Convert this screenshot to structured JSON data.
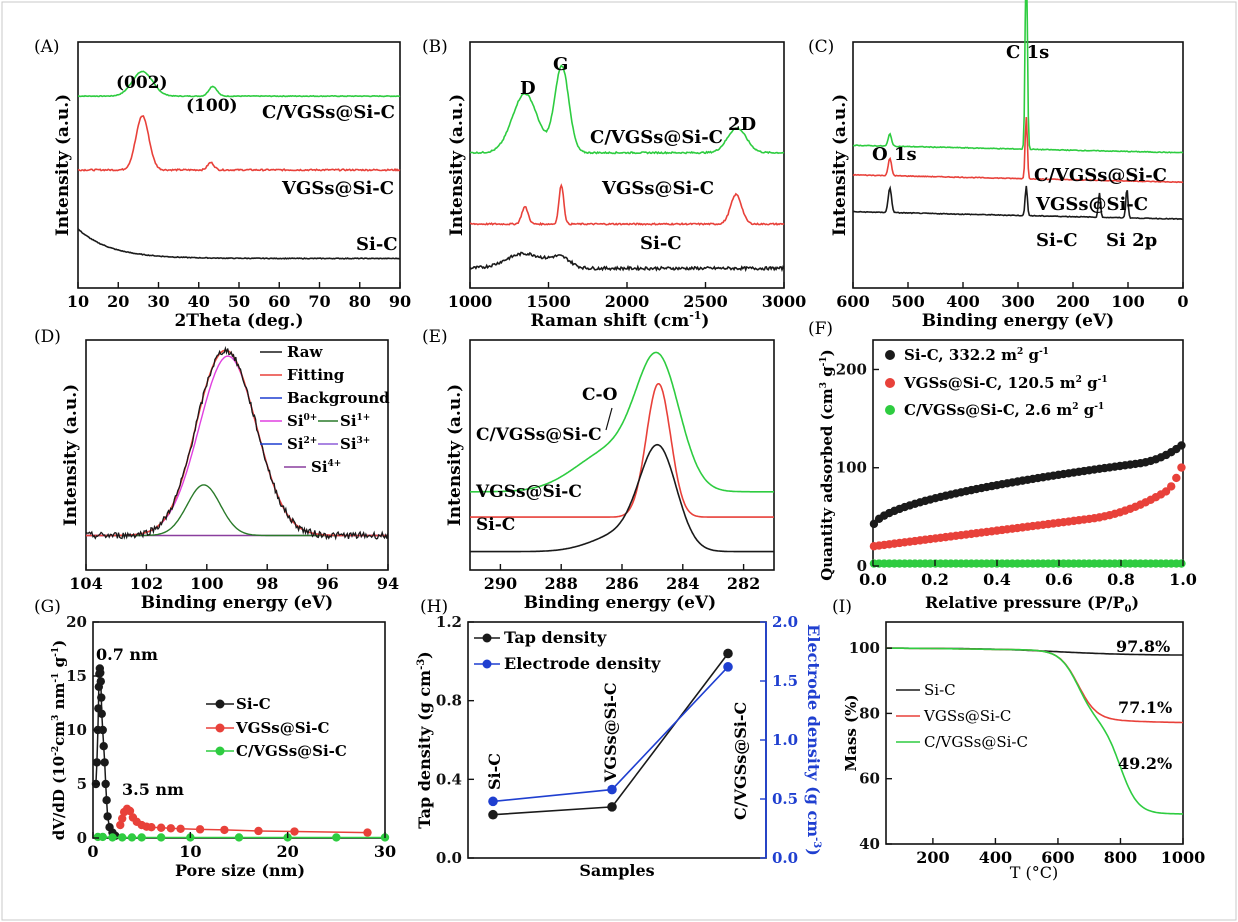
{
  "figure": {
    "border_color": "#c8c8c8"
  },
  "colors": {
    "black": "#1a1a1a",
    "red": "#e8413a",
    "green": "#2ecc40",
    "blue": "#1f3fd0",
    "magenta": "#e040e0",
    "dkgreen": "#2a7a2a",
    "purple": "#8a3f9e",
    "violet": "#8e5fd8"
  },
  "chart_data": [
    {
      "id": "A",
      "type": "line",
      "panel_label": "(A)",
      "xlabel": "2Theta (deg.)",
      "ylabel": "Intensity (a.u.)",
      "xlim": [
        10,
        90
      ],
      "xticks": [
        "10",
        "20",
        "30",
        "40",
        "50",
        "60",
        "70",
        "80",
        "90"
      ],
      "annotations": [
        "(002)",
        "(100)"
      ],
      "series": [
        {
          "name": "C/VGSs@Si-C",
          "color": "green",
          "baseline": 0.78,
          "peaks": [
            [
              26,
              0.1,
              2.5
            ],
            [
              43.5,
              0.04,
              1.0
            ]
          ],
          "noise": 0.003
        },
        {
          "name": "VGSs@Si-C",
          "color": "red",
          "baseline": 0.48,
          "peaks": [
            [
              26,
              0.22,
              1.6
            ],
            [
              43,
              0.03,
              0.8
            ]
          ],
          "noise": 0.006
        },
        {
          "name": "Si-C",
          "color": "black",
          "baseline": 0.12,
          "decay": 0.12,
          "noise": 0.003
        }
      ],
      "series_labels": [
        "C/VGSs@Si-C",
        "VGSs@Si-C",
        "Si-C"
      ]
    },
    {
      "id": "B",
      "type": "line",
      "panel_label": "(B)",
      "xlabel": "Raman shift (cm",
      "xlabel_sup": "-1",
      "xlabel_end": ")",
      "ylabel": "Intensity (a.u.)",
      "xlim": [
        1000,
        3000
      ],
      "xticks": [
        "1000",
        "1500",
        "2000",
        "2500",
        "3000"
      ],
      "annotations": [
        "D",
        "G",
        "2D"
      ],
      "series": [
        {
          "name": "C/VGSs@Si-C",
          "color": "green",
          "baseline": 0.55,
          "peaks": [
            [
              1350,
              0.24,
              80
            ],
            [
              1585,
              0.35,
              45
            ],
            [
              2700,
              0.1,
              60
            ]
          ],
          "noise": 0.006
        },
        {
          "name": "VGSs@Si-C",
          "color": "red",
          "baseline": 0.26,
          "peaks": [
            [
              1350,
              0.07,
              20
            ],
            [
              1582,
              0.16,
              15
            ],
            [
              2695,
              0.12,
              35
            ]
          ],
          "noise": 0.006
        },
        {
          "name": "Si-C",
          "color": "black",
          "baseline": 0.08,
          "peaks": [
            [
              1350,
              0.06,
              120
            ],
            [
              1580,
              0.04,
              60
            ]
          ],
          "noise": 0.012
        }
      ],
      "series_labels": [
        "C/VGSs@Si-C",
        "VGSs@Si-C",
        "Si-C"
      ]
    },
    {
      "id": "C",
      "type": "line",
      "panel_label": "(C)",
      "xlabel": "Binding energy (eV)",
      "ylabel": "Intensity (a.u.)",
      "xlim": [
        600,
        0
      ],
      "xticks": [
        "600",
        "500",
        "400",
        "300",
        "200",
        "100",
        "0"
      ],
      "annotations": [
        "C 1s",
        "O 1s",
        "Si 2p"
      ],
      "series": [
        {
          "name": "C/VGSs@Si-C",
          "color": "green",
          "baseline": 0.55,
          "peaks": [
            [
              533,
              0.05,
              3
            ],
            [
              285,
              0.8,
              2
            ]
          ],
          "noise": 0.003
        },
        {
          "name": "VGSs@Si-C",
          "color": "red",
          "baseline": 0.43,
          "peaks": [
            [
              533,
              0.07,
              3
            ],
            [
              285,
              0.25,
              2
            ]
          ],
          "noise": 0.003
        },
        {
          "name": "Si-C",
          "color": "black",
          "baseline": 0.28,
          "peaks": [
            [
              533,
              0.1,
              3
            ],
            [
              285,
              0.12,
              2
            ],
            [
              152,
              0.1,
              2
            ],
            [
              102,
              0.12,
              2
            ]
          ],
          "noise": 0.003
        }
      ],
      "series_labels": [
        "C/VGSs@Si-C",
        "VGSs@Si-C",
        "Si-C"
      ]
    },
    {
      "id": "D",
      "type": "line",
      "panel_label": "(D)",
      "xlabel": "Binding energy (eV)",
      "ylabel": "Intensity (a.u.)",
      "xlim": [
        104,
        94
      ],
      "xticks": [
        "104",
        "102",
        "100",
        "98",
        "96",
        "94"
      ],
      "legend": [
        "Raw",
        "Fitting",
        "Background",
        "Si0+",
        "Si1+",
        "Si2+",
        "Si3+",
        "Si4+"
      ],
      "legend_text": {
        "raw": "Raw",
        "fitting": "Fitting",
        "background": "Background",
        "si0": "Si",
        "si0_sup": "0+",
        "si1": "Si",
        "si1_sup": "1+",
        "si2": "Si",
        "si2_sup": "2+",
        "si3": "Si",
        "si3_sup": "3+",
        "si4": "Si",
        "si4_sup": "4+"
      },
      "components": [
        {
          "name": "Si0+",
          "center": 99.3,
          "amp": 0.78,
          "width": 0.95,
          "color": "magenta"
        },
        {
          "name": "Si1+",
          "center": 100.1,
          "amp": 0.22,
          "width": 0.55,
          "color": "dkgreen"
        }
      ]
    },
    {
      "id": "E",
      "type": "line",
      "panel_label": "(E)",
      "xlabel": "Binding energy (eV)",
      "ylabel": "Intensity (a.u.)",
      "xlim": [
        291,
        281
      ],
      "xticks": [
        "290",
        "288",
        "286",
        "284",
        "282"
      ],
      "annotations": [
        "C-O"
      ],
      "series": [
        {
          "name": "C/VGSs@Si-C",
          "color": "green",
          "baseline": 0.34,
          "peaks": [
            [
              284.8,
              0.52,
              0.7
            ],
            [
              286.3,
              0.18,
              1.2
            ]
          ]
        },
        {
          "name": "VGSs@Si-C",
          "color": "red",
          "baseline": 0.23,
          "peaks": [
            [
              284.8,
              0.58,
              0.4
            ]
          ]
        },
        {
          "name": "Si-C",
          "color": "black",
          "baseline": 0.08,
          "peaks": [
            [
              284.8,
              0.42,
              0.6
            ],
            [
              285.9,
              0.08,
              1.0
            ]
          ]
        }
      ],
      "series_labels": [
        "C/VGSs@Si-C",
        "VGSs@Si-C",
        "Si-C"
      ]
    },
    {
      "id": "F",
      "type": "scatter",
      "panel_label": "(F)",
      "xlabel": "Relative pressure (P/P",
      "xlabel_sub": "0",
      "xlabel_end": ")",
      "ylabel": "Quantity adsorbed (cm",
      "ylabel_sup1": "3",
      "ylabel_mid": " g",
      "ylabel_sup2": "-1",
      "ylabel_end": ")",
      "xlim": [
        0,
        1
      ],
      "ylim": [
        0,
        230
      ],
      "xticks": [
        "0.0",
        "0.2",
        "0.4",
        "0.6",
        "0.8",
        "1.0"
      ],
      "yticks": [
        "0",
        "100",
        "200"
      ],
      "legend": [
        {
          "text": "Si-C, 332.2 m",
          "sup": "2",
          "tail": " g",
          "sup2": "-1",
          "color": "black"
        },
        {
          "text": "VGSs@Si-C, 120.5 m",
          "sup": "2",
          "tail": " g",
          "sup2": "-1",
          "color": "red"
        },
        {
          "text": "C/VGSs@Si-C, 2.6 m",
          "sup": "2",
          "tail": " g",
          "sup2": "-1",
          "color": "green"
        }
      ],
      "series": [
        {
          "name": "Si-C",
          "color": "black",
          "kind": "sic"
        },
        {
          "name": "VGSs@Si-C",
          "color": "red",
          "kind": "vgs"
        },
        {
          "name": "C/VGSs@Si-C",
          "color": "green",
          "kind": "cvgs"
        }
      ]
    },
    {
      "id": "G",
      "type": "scatter",
      "panel_label": "(G)",
      "xlabel": "Pore size (nm)",
      "ylabel": "dV/dD (10",
      "ylabel_sup": "-2",
      "ylabel_rest": "cm",
      "ylabel_sup2": "3",
      "ylabel_rest2": " nm",
      "ylabel_sup3": "-1",
      "ylabel_rest3": " g",
      "ylabel_sup4": "-1",
      "ylabel_end": ")",
      "xlim": [
        0,
        30
      ],
      "ylim": [
        0,
        20
      ],
      "xticks": [
        "0",
        "10",
        "20",
        "30"
      ],
      "yticks": [
        "0",
        "5",
        "10",
        "15",
        "20"
      ],
      "annotations": [
        "0.7 nm",
        "3.5 nm"
      ],
      "legend": [
        "Si-C",
        "VGSs@Si-C",
        "C/VGSs@Si-C"
      ],
      "series": [
        {
          "name": "Si-C",
          "color": "black",
          "x": [
            0.3,
            0.4,
            0.5,
            0.55,
            0.6,
            0.65,
            0.7,
            0.75,
            0.8,
            0.85,
            0.9,
            1.0,
            1.1,
            1.2,
            1.3,
            1.4,
            1.5,
            1.7,
            2.0,
            2.3
          ],
          "y": [
            5,
            7,
            10,
            12,
            14,
            15.2,
            15.7,
            15.3,
            14.5,
            13,
            11.5,
            10,
            8.5,
            7,
            5,
            3.5,
            2,
            1,
            0.5,
            0.2
          ]
        },
        {
          "name": "VGSs@Si-C",
          "color": "red",
          "x": [
            2.8,
            3.0,
            3.2,
            3.5,
            3.8,
            4.1,
            4.5,
            5,
            5.5,
            6,
            7,
            8,
            9,
            11,
            13.5,
            17,
            20.7,
            28.2
          ],
          "y": [
            1.2,
            1.8,
            2.4,
            2.7,
            2.5,
            1.9,
            1.5,
            1.2,
            1.05,
            1.0,
            0.95,
            0.9,
            0.85,
            0.8,
            0.75,
            0.65,
            0.6,
            0.5
          ]
        },
        {
          "name": "C/VGSs@Si-C",
          "color": "green",
          "x": [
            0.5,
            1,
            2,
            3,
            4,
            5,
            7,
            10,
            15,
            20,
            25,
            30
          ],
          "y": [
            0.1,
            0.1,
            0.05,
            0.05,
            0.05,
            0.05,
            0.05,
            0.05,
            0.05,
            0.05,
            0.05,
            0.05
          ]
        }
      ]
    },
    {
      "id": "H",
      "type": "line",
      "panel_label": "(H)",
      "xlabel": "Samples",
      "ylabel": "Tap density (g cm",
      "ylabel_sup": "-3",
      "ylabel_end": ")",
      "y2label": "Electrode density (g cm",
      "y2label_sup": "-3",
      "y2label_end": ")",
      "categories": [
        "Si-C",
        "VGSs@Si-C",
        "C/VGSs@Si-C"
      ],
      "ylim": [
        0,
        1.2
      ],
      "yticks": [
        "0.0",
        "0.4",
        "0.8",
        "1.2"
      ],
      "y2lim": [
        0,
        2.0
      ],
      "y2ticks": [
        "0.0",
        "0.5",
        "1.0",
        "1.5",
        "2.0"
      ],
      "legend": [
        "Tap density",
        "Electrode density"
      ],
      "series": [
        {
          "name": "Tap density",
          "color": "black",
          "axis": "left",
          "values": [
            0.22,
            0.26,
            1.04
          ]
        },
        {
          "name": "Electrode density",
          "color": "blue",
          "axis": "right",
          "values": [
            0.48,
            0.58,
            1.62
          ]
        }
      ]
    },
    {
      "id": "I",
      "type": "line",
      "panel_label": "(I)",
      "xlabel": "T (°C)",
      "ylabel": "Mass (%)",
      "xlim": [
        50,
        1000
      ],
      "ylim": [
        40,
        108
      ],
      "xticks": [
        "200",
        "400",
        "600",
        "800",
        "1000"
      ],
      "yticks": [
        "40",
        "60",
        "80",
        "100"
      ],
      "annotations": [
        "97.8%",
        "77.1%",
        "49.2%"
      ],
      "legend": [
        "Si-C",
        "VGSs@Si-C",
        "C/VGSs@Si-C"
      ],
      "series": [
        {
          "name": "Si-C",
          "color": "black",
          "final": 97.8
        },
        {
          "name": "VGSs@Si-C",
          "color": "red",
          "final": 77.1
        },
        {
          "name": "C/VGSs@Si-C",
          "color": "green",
          "final": 49.2
        }
      ]
    }
  ]
}
